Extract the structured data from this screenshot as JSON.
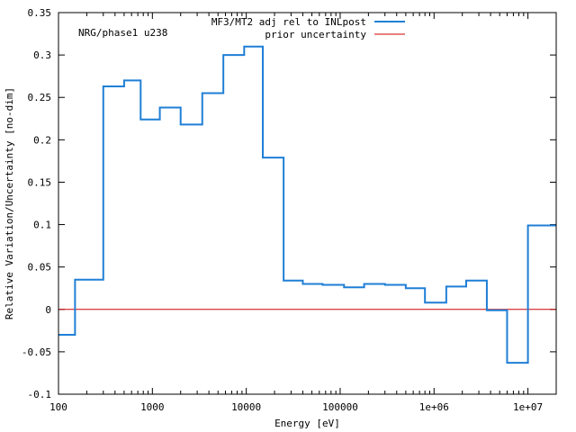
{
  "chart_data": {
    "type": "line",
    "step": true,
    "xscale": "log",
    "xlim": [
      100,
      20000000
    ],
    "ylim": [
      -0.1,
      0.35
    ],
    "xlabel": "Energy [eV]",
    "ylabel": "Relative Variation/Uncertainty [no-dim]",
    "annotation": "NRG/phase1 u238",
    "legend_position": "top-right",
    "xticks": [
      {
        "value": 100,
        "label": "100"
      },
      {
        "value": 1000,
        "label": "1000"
      },
      {
        "value": 10000,
        "label": "10000"
      },
      {
        "value": 100000,
        "label": "100000"
      },
      {
        "value": 1000000,
        "label": "1e+06"
      },
      {
        "value": 10000000,
        "label": "1e+07"
      }
    ],
    "yticks": [
      {
        "value": 0.35,
        "label": "0.35"
      },
      {
        "value": 0.3,
        "label": "0.3"
      },
      {
        "value": 0.25,
        "label": "0.25"
      },
      {
        "value": 0.2,
        "label": "0.2"
      },
      {
        "value": 0.15,
        "label": "0.15"
      },
      {
        "value": 0.1,
        "label": "0.1"
      },
      {
        "value": 0.05,
        "label": "0.05"
      },
      {
        "value": 0,
        "label": "0"
      },
      {
        "value": -0.05,
        "label": "-0.05"
      },
      {
        "value": -0.1,
        "label": "-0.1"
      }
    ],
    "series": [
      {
        "name": "MF3/MT2 adj rel to INLpost",
        "color": "#1f7fd6",
        "edges": [
          100,
          150,
          300,
          500,
          750,
          1200,
          2000,
          3400,
          5700,
          9500,
          15000,
          25000,
          40000,
          65000,
          110000,
          180000,
          300000,
          500000,
          800000,
          1350000,
          2200000,
          3650000,
          6000000,
          10000000,
          20000000
        ],
        "values": [
          -0.03,
          0.035,
          0.263,
          0.27,
          0.224,
          0.238,
          0.218,
          0.255,
          0.3,
          0.31,
          0.179,
          0.034,
          0.03,
          0.029,
          0.026,
          0.03,
          0.029,
          0.025,
          0.008,
          0.027,
          0.034,
          -0.001,
          -0.063,
          0.099
        ]
      },
      {
        "name": "prior uncertainty",
        "color": "#cc0000",
        "x": [
          100,
          20000000
        ],
        "values": [
          0,
          0
        ]
      }
    ]
  }
}
